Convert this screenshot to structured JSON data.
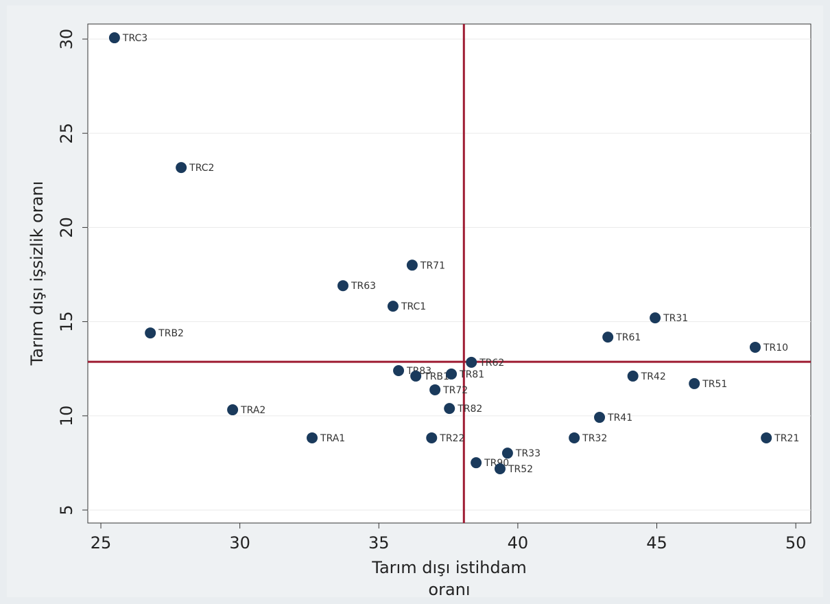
{
  "chart_data": {
    "type": "scatter",
    "xlabel": [
      "Tarım dışı istihdam",
      "oranı"
    ],
    "ylabel": "Tarım dışı işsizlik oranı",
    "labels": [
      "TRC3",
      "TRC2",
      "TR71",
      "TR63",
      "TRC1",
      "TRB2",
      "TR31",
      "TR61",
      "TR10",
      "TR62",
      "TR83",
      "TRB1",
      "TR81",
      "TR42",
      "TR51",
      "TR72",
      "TRA2",
      "TR82",
      "TR41",
      "TRA1",
      "TR22",
      "TR32",
      "TR21",
      "TR33",
      "TR90",
      "TR52"
    ],
    "x": [
      25.49,
      27.89,
      36.2,
      33.71,
      35.51,
      26.78,
      44.94,
      43.24,
      48.54,
      38.33,
      35.71,
      36.33,
      37.61,
      44.14,
      46.35,
      37.02,
      29.74,
      37.54,
      42.94,
      32.6,
      36.9,
      42.03,
      48.94,
      39.63,
      38.5,
      39.36
    ],
    "y": [
      30.07,
      23.18,
      18.0,
      16.91,
      15.82,
      14.4,
      15.2,
      14.18,
      13.64,
      12.84,
      12.4,
      12.11,
      12.22,
      12.11,
      11.71,
      11.38,
      10.32,
      10.39,
      9.92,
      8.83,
      8.83,
      8.83,
      8.83,
      8.02,
      7.51,
      7.19
    ],
    "color": "#1a3a5c",
    "xlim": [
      24.53,
      50.54
    ],
    "ylim": [
      4.31,
      30.8
    ],
    "xticks": [
      25,
      30,
      35,
      40,
      45,
      50
    ],
    "yticks": [
      5,
      10,
      15,
      20,
      25,
      30
    ],
    "grid": true,
    "xline": 38.06,
    "yline": 12.87,
    "refline_color": "#9e1b32"
  }
}
